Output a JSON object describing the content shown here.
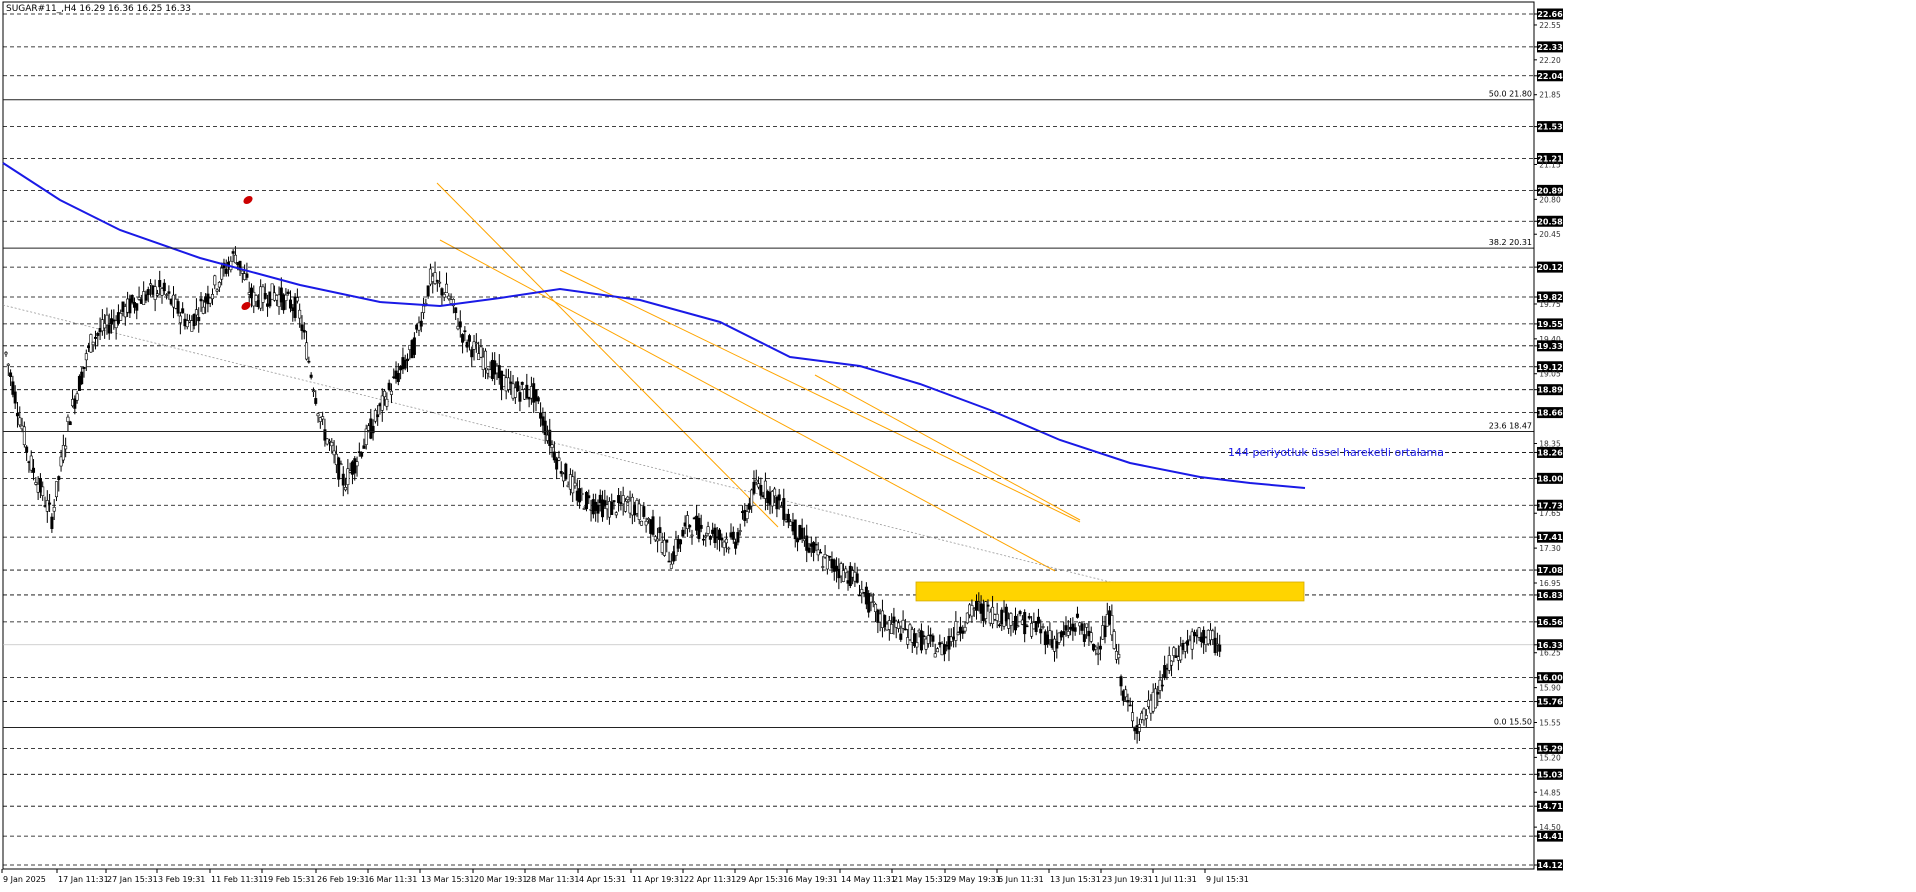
{
  "header": {
    "title": "SUGAR#11_,H4  16.29 16.36 16.25 16.33"
  },
  "chart_data": {
    "type": "candlestick",
    "symbol": "SUGAR#11_",
    "timeframe": "H4",
    "ohlc_header": {
      "open": 16.29,
      "high": 16.36,
      "low": 16.25,
      "close": 16.33
    },
    "current_price": "16.33",
    "ylim": [
      14.12,
      22.66
    ],
    "y_axis_labels": [
      "22.66",
      "22.55",
      "22.33",
      "22.20",
      "22.04",
      "21.85",
      "21.53",
      "21.21",
      "21.15",
      "20.89",
      "20.80",
      "20.58",
      "20.45",
      "20.12",
      "19.82",
      "19.75",
      "19.55",
      "19.40",
      "19.33",
      "19.12",
      "19.05",
      "18.89",
      "18.66",
      "18.35",
      "18.26",
      "18.00",
      "17.73",
      "17.65",
      "17.41",
      "17.30",
      "17.08",
      "16.95",
      "16.83",
      "16.56",
      "16.33",
      "16.25",
      "16.00",
      "15.90",
      "15.76",
      "15.55",
      "15.29",
      "15.20",
      "15.03",
      "14.85",
      "14.71",
      "14.50",
      "14.41",
      "14.12"
    ],
    "highlighted_levels": [
      "22.66",
      "22.33",
      "22.04",
      "21.53",
      "21.21",
      "20.89",
      "20.58",
      "20.12",
      "19.82",
      "19.55",
      "19.33",
      "19.12",
      "18.89",
      "18.66",
      "18.26",
      "18.00",
      "17.73",
      "17.41",
      "17.08",
      "16.83",
      "16.56",
      "16.33",
      "16.00",
      "15.76",
      "15.29",
      "15.03",
      "14.71",
      "14.41",
      "14.12"
    ],
    "dashed_levels": [
      22.66,
      22.33,
      22.04,
      21.53,
      21.21,
      20.89,
      20.58,
      20.12,
      19.82,
      19.55,
      19.33,
      19.12,
      18.89,
      18.66,
      18.26,
      18.0,
      17.73,
      17.41,
      17.08,
      16.83,
      16.56,
      16.0,
      15.76,
      15.29,
      15.03,
      14.71,
      14.41,
      14.12
    ],
    "x_axis_labels": [
      "9 Jan 2025",
      "17 Jan 11:31",
      "27 Jan 15:31",
      "3 Feb 19:31",
      "11 Feb 11:31",
      "19 Feb 15:31",
      "26 Feb 19:31",
      "6 Mar 11:31",
      "13 Mar 15:31",
      "20 Mar 19:31",
      "28 Mar 11:31",
      "4 Apr 15:31",
      "11 Apr 19:31",
      "22 Apr 11:31",
      "29 Apr 15:31",
      "6 May 19:31",
      "14 May 11:31",
      "21 May 15:31",
      "29 May 19:31",
      "6 Jun 11:31",
      "13 Jun 15:31",
      "23 Jun 19:31",
      "1 Jul 11:31",
      "9 Jul 15:31"
    ],
    "fibonacci": [
      {
        "label": "50.0 21.80",
        "value": 21.8
      },
      {
        "label": "38.2 20.31",
        "value": 20.31
      },
      {
        "label": "23.6 18.47",
        "value": 18.47
      },
      {
        "label": "0.0 15.50",
        "value": 15.5
      }
    ],
    "ema": {
      "label": "144 periyotluk üssel hareketli ortalama",
      "period": 144,
      "color": "#1a1ae6"
    },
    "resistance_zone": {
      "from": 16.77,
      "to": 16.96,
      "color": "#ffd400"
    },
    "price_path": [
      [
        0,
        19.25
      ],
      [
        20,
        18.2
      ],
      [
        40,
        17.6
      ],
      [
        55,
        18.6
      ],
      [
        75,
        19.4
      ],
      [
        95,
        19.6
      ],
      [
        115,
        19.8
      ],
      [
        135,
        19.9
      ],
      [
        160,
        19.55
      ],
      [
        180,
        19.9
      ],
      [
        200,
        20.25
      ],
      [
        215,
        19.8
      ],
      [
        235,
        19.85
      ],
      [
        255,
        19.7
      ],
      [
        275,
        18.55
      ],
      [
        295,
        17.95
      ],
      [
        312,
        18.35
      ],
      [
        335,
        18.9
      ],
      [
        355,
        19.3
      ],
      [
        370,
        20.0
      ],
      [
        385,
        19.85
      ],
      [
        400,
        19.4
      ],
      [
        420,
        19.15
      ],
      [
        440,
        18.9
      ],
      [
        460,
        18.85
      ],
      [
        480,
        18.2
      ],
      [
        500,
        17.8
      ],
      [
        525,
        17.7
      ],
      [
        545,
        17.75
      ],
      [
        565,
        17.5
      ],
      [
        580,
        17.2
      ],
      [
        595,
        17.55
      ],
      [
        615,
        17.45
      ],
      [
        635,
        17.35
      ],
      [
        655,
        17.95
      ],
      [
        675,
        17.75
      ],
      [
        690,
        17.45
      ],
      [
        710,
        17.2
      ],
      [
        725,
        17.1
      ],
      [
        740,
        17.0
      ],
      [
        760,
        16.6
      ],
      [
        785,
        16.45
      ],
      [
        815,
        16.28
      ],
      [
        845,
        16.7
      ],
      [
        875,
        16.6
      ],
      [
        900,
        16.5
      ],
      [
        915,
        16.35
      ],
      [
        935,
        16.55
      ],
      [
        950,
        16.3
      ],
      [
        963,
        16.6
      ],
      [
        975,
        15.8
      ],
      [
        987,
        15.5
      ],
      [
        1000,
        15.75
      ],
      [
        1015,
        16.15
      ],
      [
        1030,
        16.35
      ],
      [
        1045,
        16.42
      ],
      [
        1060,
        16.3
      ]
    ],
    "colors": {
      "ema": "#1a1ae6",
      "channel": "#ffa500",
      "zone": "#ffd400",
      "markers": "#cc0000",
      "candle": "#000000",
      "fib_line": "#222222",
      "trend_dotted": "#999999"
    }
  }
}
